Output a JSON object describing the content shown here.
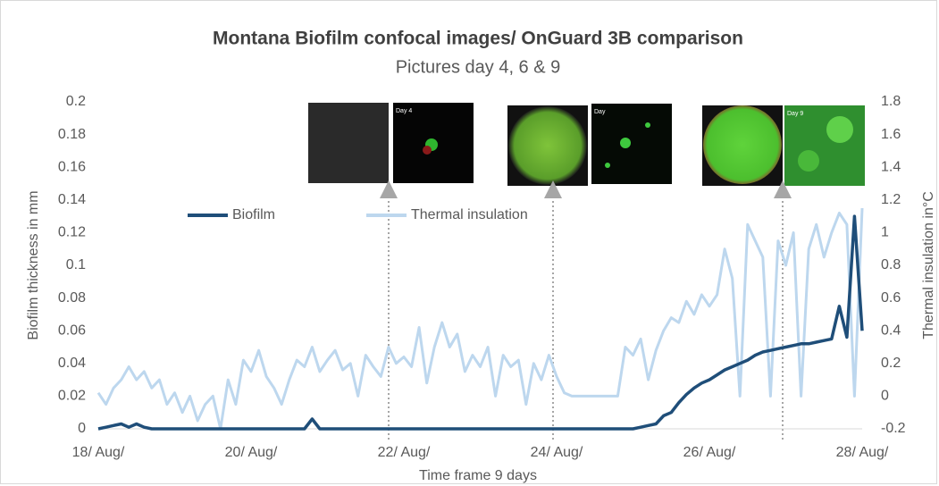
{
  "chart_data": {
    "type": "line",
    "title": "Montana Biofilm confocal images/ OnGuard 3B comparison",
    "subtitle": "Pictures day 4, 6 & 9",
    "x_label": "Time frame 9 days",
    "y_label": "Biofilm thickness in mm",
    "y2_label": "Thermal insulation in°C",
    "image_labels": [
      "Day 4",
      "Day",
      "Day 9"
    ],
    "x": [
      18.0,
      18.1,
      18.2,
      18.3,
      18.4,
      18.5,
      18.6,
      18.7,
      18.8,
      18.9,
      19.0,
      19.1,
      19.2,
      19.3,
      19.4,
      19.5,
      19.6,
      19.7,
      19.8,
      19.9,
      20.0,
      20.1,
      20.2,
      20.3,
      20.4,
      20.5,
      20.6,
      20.7,
      20.8,
      20.9,
      21.0,
      21.1,
      21.2,
      21.3,
      21.4,
      21.5,
      21.6,
      21.7,
      21.8,
      21.9,
      22.0,
      22.1,
      22.2,
      22.3,
      22.4,
      22.5,
      22.6,
      22.7,
      22.8,
      22.9,
      23.0,
      23.1,
      23.2,
      23.3,
      23.4,
      23.5,
      23.6,
      23.7,
      23.8,
      23.9,
      24.0,
      24.1,
      24.2,
      24.3,
      24.4,
      24.5,
      24.6,
      24.7,
      24.8,
      24.9,
      25.0,
      25.1,
      25.2,
      25.3,
      25.4,
      25.5,
      25.6,
      25.7,
      25.8,
      25.9,
      26.0,
      26.1,
      26.2,
      26.3,
      26.4,
      26.5,
      26.6,
      26.7,
      26.8,
      26.9,
      27.0,
      27.1,
      27.2,
      27.3,
      27.4,
      27.5,
      27.6,
      27.7,
      27.8,
      27.9,
      28.0
    ],
    "series": [
      {
        "name": "Biofilm",
        "color": "#1f4e79",
        "axis": "y",
        "values": [
          0,
          0.001,
          0.002,
          0.003,
          0.001,
          0.003,
          0.001,
          0,
          0,
          0,
          0,
          0,
          0,
          0,
          0,
          0,
          0,
          0,
          0,
          0,
          0,
          0,
          0,
          0,
          0,
          0,
          0,
          0,
          0.006,
          0,
          0,
          0,
          0,
          0,
          0,
          0,
          0,
          0,
          0,
          0,
          0,
          0,
          0,
          0,
          0,
          0,
          0,
          0,
          0,
          0,
          0,
          0,
          0,
          0,
          0,
          0,
          0,
          0,
          0,
          0,
          0,
          0,
          0,
          0,
          0,
          0,
          0,
          0,
          0,
          0,
          0,
          0.001,
          0.002,
          0.003,
          0.008,
          0.01,
          0.016,
          0.021,
          0.025,
          0.028,
          0.03,
          0.033,
          0.036,
          0.038,
          0.04,
          0.042,
          0.045,
          0.047,
          0.048,
          0.049,
          0.05,
          0.051,
          0.052,
          0.052,
          0.053,
          0.054,
          0.055,
          0.075,
          0.056,
          0.13,
          0.06
        ]
      },
      {
        "name": "Thermal insulation",
        "color": "#bdd7ee",
        "axis": "y2",
        "values": [
          0.02,
          -0.05,
          0.05,
          0.1,
          0.18,
          0.1,
          0.15,
          0.05,
          0.1,
          -0.05,
          0.02,
          -0.1,
          0.0,
          -0.15,
          -0.05,
          0.0,
          -0.2,
          0.1,
          -0.05,
          0.22,
          0.15,
          0.28,
          0.12,
          0.05,
          -0.05,
          0.1,
          0.22,
          0.18,
          0.3,
          0.15,
          0.22,
          0.28,
          0.16,
          0.2,
          0.0,
          0.25,
          0.18,
          0.12,
          0.3,
          0.2,
          0.24,
          0.18,
          0.42,
          0.08,
          0.3,
          0.45,
          0.3,
          0.38,
          0.15,
          0.25,
          0.18,
          0.3,
          0.0,
          0.25,
          0.18,
          0.22,
          -0.05,
          0.2,
          0.1,
          0.25,
          0.12,
          0.02,
          0.0,
          0.0,
          0.0,
          0.0,
          0.0,
          0.0,
          0.0,
          0.3,
          0.25,
          0.35,
          0.1,
          0.28,
          0.4,
          0.48,
          0.45,
          0.58,
          0.5,
          0.62,
          0.55,
          0.62,
          0.9,
          0.72,
          0.0,
          1.05,
          0.95,
          0.85,
          0.0,
          0.95,
          0.8,
          1.0,
          0.0,
          0.9,
          1.05,
          0.85,
          1.0,
          1.12,
          1.05,
          0.0,
          1.15
        ]
      }
    ],
    "xlim": [
      18,
      28
    ],
    "xticks": [
      {
        "value": 18,
        "label": "18/ Aug/"
      },
      {
        "value": 20,
        "label": "20/ Aug/"
      },
      {
        "value": 22,
        "label": "22/ Aug/"
      },
      {
        "value": 24,
        "label": "24/ Aug/"
      },
      {
        "value": 26,
        "label": "26/ Aug/"
      },
      {
        "value": 28,
        "label": "28/ Aug/"
      }
    ],
    "ylim": [
      0,
      0.2
    ],
    "yticks": [
      0,
      0.02,
      0.04,
      0.06,
      0.08,
      0.1,
      0.12,
      0.14,
      0.16,
      0.18,
      0.2
    ],
    "y2lim": [
      -0.2,
      1.8
    ],
    "y2ticks": [
      -0.2,
      0,
      0.2,
      0.4,
      0.6,
      0.8,
      1,
      1.2,
      1.4,
      1.6,
      1.8
    ],
    "grid": false,
    "legend": "upper-left"
  }
}
